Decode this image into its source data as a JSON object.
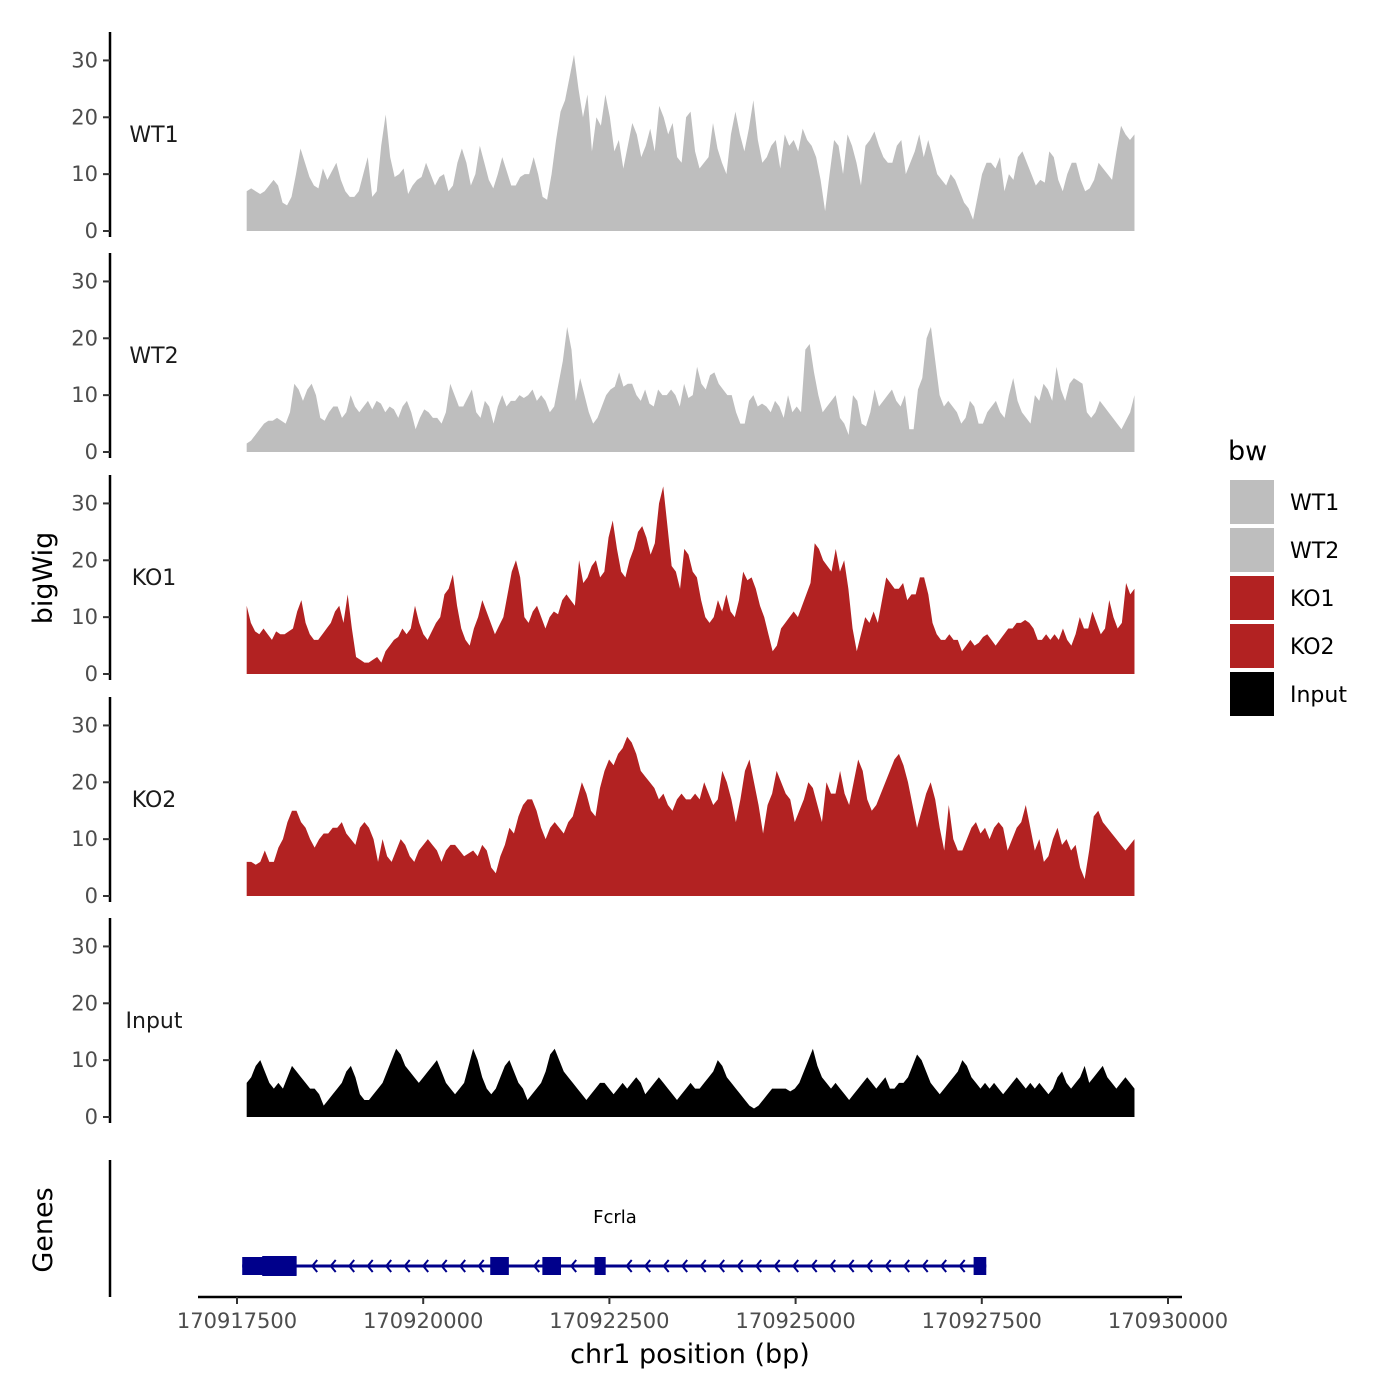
{
  "chart_data": {
    "type": "area",
    "ylabel": "bigWig",
    "xlabel": "chr1 position (bp)",
    "gene_panel_label": "Genes",
    "legend": {
      "title": "bw",
      "placement": "right",
      "items": [
        {
          "label": "WT1",
          "color": "#BEBEBE"
        },
        {
          "label": "WT2",
          "color": "#BEBEBE"
        },
        {
          "label": "KO1",
          "color": "#B22222"
        },
        {
          "label": "KO2",
          "color": "#B22222"
        },
        {
          "label": "Input",
          "color": "#000000"
        }
      ]
    },
    "y_range": [
      0,
      35
    ],
    "y_ticks": [
      0,
      10,
      20,
      30
    ],
    "y_tick_labels": [
      "0",
      "10",
      "20",
      "30"
    ],
    "x_range": [
      170917000,
      170930000
    ],
    "x_ticks": [
      170917500,
      170920000,
      170922500,
      170925000,
      170927500,
      170930000
    ],
    "x_tick_labels": [
      "170917500",
      "170920000",
      "170922500",
      "170925000",
      "170927500",
      "170930000"
    ],
    "signal_x_start": 170917630,
    "signal_x_end": 170929550,
    "tracks": [
      {
        "name": "WT1",
        "color": "#BEBEBE",
        "values": [
          7,
          7.5,
          7,
          6.5,
          7,
          8,
          9,
          8,
          5,
          4.5,
          6,
          10,
          14.5,
          12,
          9.5,
          8,
          7.5,
          11,
          9,
          10.5,
          12,
          9,
          7,
          6,
          6,
          7,
          10,
          13,
          6,
          7,
          15,
          20.5,
          13,
          9.5,
          10,
          11,
          6.5,
          8,
          9,
          9.5,
          12,
          10,
          8,
          9.5,
          10,
          7,
          8,
          12,
          14.5,
          12,
          8,
          10,
          15,
          12,
          9,
          7.5,
          10,
          13,
          10.5,
          8,
          8,
          9.5,
          10,
          10,
          13,
          10,
          6,
          5.5,
          10,
          16,
          21,
          23,
          27,
          31,
          25,
          20,
          24,
          14,
          20,
          18.5,
          24,
          20,
          14,
          16,
          11,
          15,
          19,
          17,
          13,
          15,
          18,
          14,
          22,
          20,
          17,
          19,
          13,
          12,
          20,
          21,
          14,
          11,
          12,
          13,
          19,
          14.5,
          12,
          10,
          17,
          21,
          17,
          14,
          18,
          23,
          16,
          12,
          13,
          15,
          16,
          11,
          17,
          15,
          16,
          14,
          18,
          16,
          15,
          13,
          9,
          3.5,
          10,
          16,
          15,
          10,
          17,
          15,
          12,
          8,
          15,
          16,
          17.5,
          15,
          13,
          12,
          12,
          15,
          16,
          10,
          12,
          14,
          17,
          13,
          16,
          13,
          10,
          9,
          8,
          10,
          9,
          7,
          5,
          4,
          2,
          6,
          10,
          12,
          12,
          11,
          13,
          7,
          10,
          9,
          13,
          14,
          12,
          10,
          8,
          9,
          8.5,
          14,
          13,
          9,
          7,
          10,
          12,
          12,
          9,
          7,
          7.5,
          9,
          12,
          11,
          10,
          9,
          14,
          18.5,
          17,
          16,
          17
        ]
      },
      {
        "name": "WT2",
        "color": "#BEBEBE",
        "values": [
          1.5,
          2,
          3,
          4,
          5,
          5.5,
          5.5,
          6,
          5.5,
          5,
          7,
          12,
          11,
          9,
          11,
          12,
          10,
          6,
          5.5,
          7,
          8,
          8,
          6,
          7,
          10,
          8,
          7,
          8,
          9,
          7.5,
          9,
          8.5,
          7,
          8,
          7.5,
          6,
          8,
          9,
          7,
          4,
          6,
          7.5,
          7,
          6,
          6,
          5,
          7,
          12,
          10,
          8,
          8,
          9.5,
          11,
          7,
          6,
          9,
          8,
          5,
          8,
          10,
          8,
          9,
          9,
          10,
          9.5,
          10,
          11,
          9,
          10,
          9,
          7,
          8,
          12,
          16,
          22,
          18,
          9,
          13,
          10,
          7,
          5,
          6,
          8,
          10,
          11,
          11.5,
          14,
          11.5,
          12,
          12,
          10,
          9,
          11,
          8.5,
          8,
          11,
          10,
          10,
          11,
          10,
          8,
          12,
          9.5,
          10,
          15,
          12,
          11,
          13.5,
          14,
          12,
          11,
          10,
          10,
          7,
          5,
          5,
          9,
          10,
          8,
          8.5,
          8,
          7,
          9,
          8,
          6,
          10,
          7,
          8,
          7,
          18,
          19,
          14,
          10,
          7,
          8,
          9,
          10,
          6,
          5,
          3,
          10,
          9,
          5,
          4.5,
          7,
          11,
          8,
          9,
          10,
          11,
          9,
          8,
          10,
          4,
          4,
          11,
          13,
          20,
          22,
          16,
          10,
          8,
          9,
          8,
          7,
          5,
          6,
          9,
          8,
          5,
          5,
          7,
          8,
          9,
          7,
          6,
          10,
          13,
          9,
          7,
          6,
          5,
          10,
          9,
          12,
          11,
          9,
          15,
          11,
          9,
          12,
          13,
          12.5,
          12,
          7,
          6,
          7,
          9,
          8,
          7,
          6,
          5,
          4,
          5.5,
          7,
          10
        ]
      },
      {
        "name": "KO1",
        "color": "#B22222",
        "values": [
          12,
          9,
          7.5,
          7,
          8,
          7,
          6,
          7.5,
          7,
          7,
          7.5,
          8,
          11,
          13,
          9,
          7,
          6,
          6,
          7,
          8,
          9,
          11,
          12,
          9,
          14,
          8,
          3,
          2.5,
          2,
          2,
          2.5,
          3,
          2,
          4,
          5,
          6,
          6.5,
          8,
          7,
          8,
          12,
          9,
          7,
          6,
          7.5,
          9,
          10,
          14,
          15,
          17.5,
          12,
          8,
          6,
          5,
          8,
          10,
          13,
          11,
          9,
          7,
          8.5,
          10,
          14,
          18,
          20,
          17,
          10,
          9,
          11,
          12,
          10,
          8,
          10,
          11,
          10.5,
          13,
          14,
          13,
          12,
          20,
          16,
          17,
          19,
          20,
          17,
          18,
          24,
          27,
          22,
          18,
          17,
          20,
          22,
          25,
          26,
          24,
          21,
          23,
          30,
          33,
          26,
          19,
          18,
          15,
          22,
          21,
          18,
          17,
          13,
          10,
          9,
          10,
          13,
          11,
          14,
          11,
          10,
          13,
          18,
          16.5,
          17,
          15,
          12,
          10,
          7,
          4,
          5,
          8,
          9,
          10,
          11,
          10,
          12,
          14,
          16,
          23,
          22,
          20,
          19,
          18,
          22,
          18,
          20,
          15,
          8,
          4,
          7,
          10,
          9,
          11,
          9,
          13,
          17,
          16,
          15,
          15,
          16,
          13,
          14,
          14,
          17,
          17,
          14,
          9,
          7,
          6,
          6,
          7,
          6,
          6,
          4,
          5,
          6,
          5,
          5.5,
          6.5,
          7,
          6,
          5,
          6,
          7,
          8,
          8,
          9,
          9,
          9.5,
          9,
          8,
          6,
          6,
          7,
          6,
          7,
          6,
          8,
          6,
          5,
          7,
          10,
          8,
          8,
          11,
          9,
          7,
          8,
          13,
          10,
          8,
          9,
          16,
          14,
          15
        ]
      },
      {
        "name": "KO2",
        "color": "#B22222",
        "values": [
          6,
          6,
          5.5,
          6,
          8,
          6,
          6,
          8.5,
          10,
          13,
          15,
          15,
          13,
          12,
          10,
          8.5,
          10,
          11,
          11,
          12,
          12,
          13,
          11,
          10,
          9,
          12,
          13,
          12,
          10,
          6,
          10,
          7,
          6,
          8,
          10,
          9,
          7,
          6,
          8,
          9,
          10,
          9,
          8,
          6,
          8,
          9,
          9,
          8,
          7,
          7.5,
          8,
          7,
          9,
          8,
          5,
          4,
          7,
          9,
          12,
          11,
          14,
          16,
          17,
          17,
          15,
          12,
          10,
          12,
          13,
          12,
          11,
          13,
          14,
          17,
          20,
          18,
          15,
          14,
          19,
          22,
          24,
          23,
          25,
          26,
          28,
          27,
          25,
          22,
          21,
          20,
          19,
          17,
          18,
          16,
          15,
          17,
          18,
          17,
          17,
          18,
          17,
          20,
          18,
          16,
          17,
          22,
          20,
          17,
          13,
          17,
          22,
          24,
          20,
          16,
          11,
          16,
          18,
          22,
          20,
          18,
          17,
          13,
          15,
          17,
          20,
          19,
          16,
          13,
          20,
          18,
          18,
          22,
          18,
          16,
          20,
          24,
          22,
          17,
          15,
          16,
          18,
          20,
          22,
          24,
          25,
          23,
          20,
          16,
          12,
          15,
          18,
          20,
          17,
          12,
          8,
          16,
          10,
          8,
          8,
          10,
          12,
          13,
          11,
          12,
          10,
          12,
          13,
          12,
          8,
          10,
          12,
          13,
          16,
          12,
          8,
          10,
          6,
          7,
          10,
          12,
          9,
          10,
          8,
          9,
          5,
          3,
          8,
          14,
          15,
          13,
          12,
          11,
          10,
          9,
          8,
          9,
          10
        ]
      },
      {
        "name": "Input",
        "color": "#000000",
        "values": [
          6,
          7,
          9,
          10,
          8,
          6,
          5,
          6,
          5,
          7,
          9,
          8,
          7,
          6,
          5,
          5,
          4,
          2,
          3,
          4,
          5,
          6,
          8,
          9,
          7,
          4,
          3,
          3,
          4,
          5,
          6,
          8,
          10,
          12,
          11,
          9,
          8,
          7,
          6,
          7,
          8,
          9,
          10,
          8,
          6,
          5,
          4,
          5,
          6,
          9,
          12,
          10,
          7,
          5,
          4,
          5,
          7,
          9,
          10,
          8,
          6,
          5,
          3,
          4,
          5,
          6,
          8,
          11,
          12,
          10,
          8,
          7,
          6,
          5,
          4,
          3,
          4,
          5,
          6,
          6,
          5,
          4,
          5,
          6,
          5,
          6,
          7,
          6,
          4,
          5,
          6,
          7,
          6,
          5,
          4,
          3,
          4,
          5,
          6,
          5,
          5,
          6,
          7,
          8,
          10,
          9,
          7,
          6,
          5,
          4,
          3,
          2,
          1.5,
          2,
          3,
          4,
          5,
          5,
          5,
          5,
          4.5,
          5,
          6,
          8,
          10,
          12,
          9,
          7,
          6,
          5,
          6,
          5,
          4,
          3,
          4,
          5,
          6,
          7,
          6,
          5,
          6,
          7,
          5,
          5,
          6,
          6,
          7,
          9,
          11,
          10,
          8,
          6,
          5,
          4,
          5,
          6,
          7,
          8,
          10,
          9,
          7,
          6,
          5,
          6,
          5,
          6,
          5,
          4,
          5,
          6,
          7,
          6,
          5,
          6,
          5,
          6,
          5,
          4,
          5,
          7,
          8,
          6,
          5,
          6,
          7,
          9,
          6,
          7,
          8,
          9,
          7,
          6,
          5,
          6,
          7,
          6,
          5
        ]
      }
    ],
    "gene": {
      "name": "Fcrla",
      "color": "#00008B",
      "strand": "-",
      "start": 170917570,
      "end": 170927560,
      "exons": [
        [
          170917570,
          170918300
        ],
        [
          170920900,
          170921150
        ],
        [
          170921600,
          170921850
        ],
        [
          170922300,
          170922450
        ],
        [
          170927390,
          170927560
        ]
      ]
    }
  }
}
